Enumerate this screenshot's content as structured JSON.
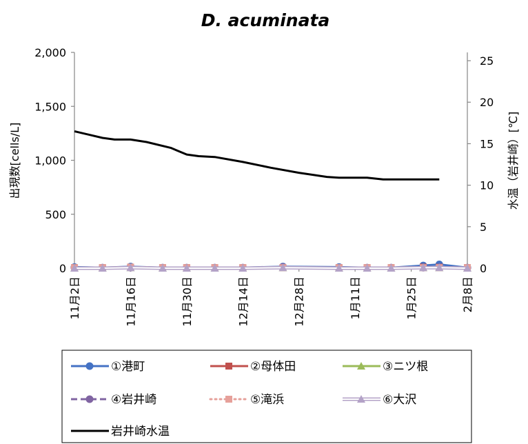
{
  "chart_data": {
    "type": "line",
    "title": "D. acuminata",
    "ylabel": "出現数[cells/L]",
    "y2label": "水温（岩井崎）[℃]",
    "ylim": [
      0,
      2000
    ],
    "y2lim": [
      0,
      26
    ],
    "yticks": [
      "0",
      "500",
      "1,000",
      "1,500",
      "2,000"
    ],
    "yticks_values": [
      0,
      500,
      1000,
      1500,
      2000
    ],
    "y2ticks": [
      "0",
      "5",
      "10",
      "15",
      "20",
      "25"
    ],
    "y2ticks_values": [
      0,
      5,
      10,
      15,
      20,
      25
    ],
    "xlim": [
      "2020-11-02",
      "2021-02-08"
    ],
    "xticks": [
      "11月2日",
      "11月16日",
      "11月30日",
      "12月14日",
      "12月28日",
      "1月11日",
      "1月25日",
      "2月8日"
    ],
    "xticks_values": [
      "2020-11-02",
      "2020-11-16",
      "2020-11-30",
      "2020-12-14",
      "2020-12-28",
      "2021-01-11",
      "2021-01-25",
      "2021-02-08"
    ],
    "grid": false,
    "legend_position": "bottom",
    "series": [
      {
        "name": "①港町",
        "color": "#4472C4",
        "marker": "circle",
        "dash": "solid",
        "axis": "left",
        "x": [
          "2020-11-02",
          "2020-11-09",
          "2020-11-16",
          "2020-11-24",
          "2020-11-30",
          "2020-12-07",
          "2020-12-14",
          "2020-12-24",
          "2021-01-07",
          "2021-01-14",
          "2021-01-20",
          "2021-01-28",
          "2021-02-01",
          "2021-02-08"
        ],
        "values": [
          10,
          5,
          15,
          5,
          5,
          5,
          5,
          15,
          10,
          5,
          5,
          25,
          35,
          5
        ]
      },
      {
        "name": "②母体田",
        "color": "#C0504D",
        "marker": "square",
        "dash": "solid",
        "axis": "left",
        "x": [
          "2020-11-02",
          "2020-11-09",
          "2020-11-16",
          "2020-11-24",
          "2020-11-30",
          "2020-12-07",
          "2020-12-14",
          "2020-12-24",
          "2021-01-07",
          "2021-01-14",
          "2021-01-20",
          "2021-01-28",
          "2021-02-01",
          "2021-02-08"
        ],
        "values": [
          5,
          5,
          10,
          5,
          5,
          5,
          5,
          5,
          5,
          5,
          5,
          10,
          10,
          5
        ]
      },
      {
        "name": "③ニツ根",
        "color": "#9BBB59",
        "marker": "triangle",
        "dash": "solid",
        "axis": "left",
        "x": [
          "2020-11-02",
          "2020-11-09",
          "2020-11-16",
          "2020-11-24",
          "2020-11-30",
          "2020-12-07",
          "2020-12-14",
          "2020-12-24",
          "2021-01-07",
          "2021-01-14",
          "2021-01-20",
          "2021-01-28",
          "2021-02-01",
          "2021-02-08"
        ],
        "values": [
          0,
          0,
          5,
          0,
          0,
          0,
          0,
          5,
          0,
          0,
          0,
          5,
          5,
          0
        ]
      },
      {
        "name": "④岩井崎",
        "color": "#8064A2",
        "marker": "circle",
        "dash": "dash",
        "axis": "left",
        "x": [
          "2020-11-02",
          "2020-11-09",
          "2020-11-16",
          "2020-11-24",
          "2020-11-30",
          "2020-12-07",
          "2020-12-14",
          "2020-12-24",
          "2021-01-07",
          "2021-01-14",
          "2021-01-20",
          "2021-01-28",
          "2021-02-01",
          "2021-02-08"
        ],
        "values": [
          5,
          5,
          5,
          5,
          5,
          5,
          5,
          10,
          5,
          5,
          5,
          5,
          10,
          5
        ]
      },
      {
        "name": "⑤滝浜",
        "color": "#E6A09A",
        "marker": "square",
        "dash": "dot",
        "axis": "left",
        "x": [
          "2020-11-02",
          "2020-11-09",
          "2020-11-16",
          "2020-11-24",
          "2020-11-30",
          "2020-12-07",
          "2020-12-14",
          "2020-12-24",
          "2021-01-07",
          "2021-01-14",
          "2021-01-20",
          "2021-01-28",
          "2021-02-01",
          "2021-02-08"
        ],
        "values": [
          5,
          5,
          10,
          5,
          5,
          5,
          5,
          5,
          5,
          5,
          5,
          5,
          5,
          5
        ]
      },
      {
        "name": "⑥大沢",
        "color": "#B3A2C7",
        "marker": "triangle",
        "dash": "double",
        "axis": "left",
        "x": [
          "2020-11-02",
          "2020-11-09",
          "2020-11-16",
          "2020-11-24",
          "2020-11-30",
          "2020-12-07",
          "2020-12-14",
          "2020-12-24",
          "2021-01-07",
          "2021-01-14",
          "2021-01-20",
          "2021-01-28",
          "2021-02-01",
          "2021-02-08"
        ],
        "values": [
          0,
          0,
          5,
          0,
          0,
          0,
          0,
          5,
          0,
          0,
          0,
          5,
          5,
          0
        ]
      },
      {
        "name": "岩井崎水温",
        "color": "#000000",
        "marker": "none",
        "dash": "solid",
        "axis": "right",
        "x": [
          "2020-11-02",
          "2020-11-09",
          "2020-11-12",
          "2020-11-16",
          "2020-11-20",
          "2020-11-26",
          "2020-11-30",
          "2020-12-03",
          "2020-12-07",
          "2020-12-14",
          "2020-12-21",
          "2020-12-28",
          "2021-01-04",
          "2021-01-07",
          "2021-01-11",
          "2021-01-14",
          "2021-01-18",
          "2021-01-25",
          "2021-02-01"
        ],
        "values": [
          16.5,
          15.7,
          15.5,
          15.5,
          15.2,
          14.5,
          13.7,
          13.5,
          13.4,
          12.8,
          12.1,
          11.5,
          11.0,
          10.9,
          10.9,
          10.9,
          10.7,
          10.7,
          10.7
        ]
      }
    ]
  }
}
